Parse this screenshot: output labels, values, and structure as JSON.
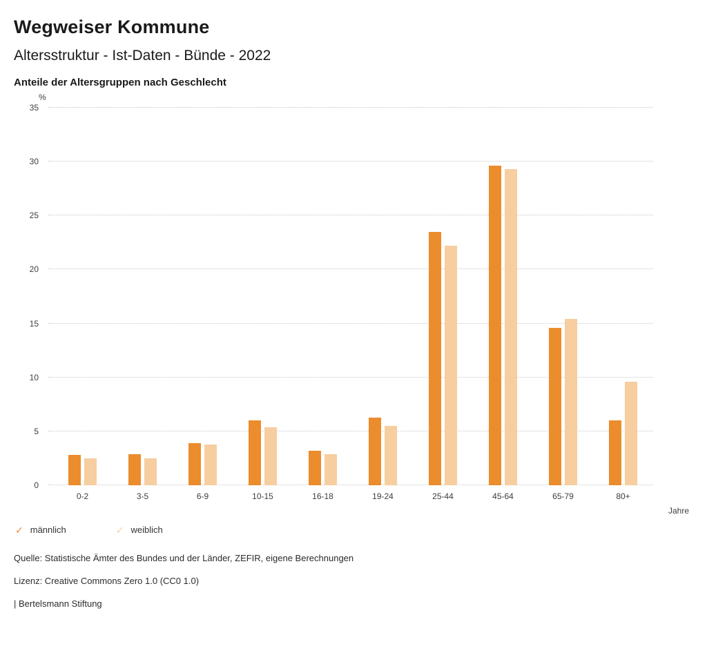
{
  "header": {
    "title": "Wegweiser Kommune",
    "subtitle": "Altersstruktur - Ist-Daten - Bünde - 2022",
    "chart_heading": "Anteile der Altersgruppen nach Geschlecht"
  },
  "chart_data": {
    "type": "bar",
    "title": "Anteile der Altersgruppen nach Geschlecht",
    "unit_label": "%",
    "xlabel": "Jahre",
    "ylabel": "%",
    "ylim": [
      0,
      35
    ],
    "yticks": [
      0,
      5,
      10,
      15,
      20,
      25,
      30,
      35
    ],
    "grid": true,
    "legend_position": "bottom",
    "categories": [
      "0-2",
      "3-5",
      "6-9",
      "10-15",
      "16-18",
      "19-24",
      "25-44",
      "45-64",
      "65-79",
      "80+"
    ],
    "series": [
      {
        "name": "männlich",
        "color": "#EB8C2D",
        "values": [
          2.8,
          2.9,
          3.9,
          6.0,
          3.2,
          6.3,
          23.5,
          29.6,
          14.6,
          6.0
        ]
      },
      {
        "name": "weiblich",
        "color": "#F6CEA0",
        "values": [
          2.5,
          2.5,
          3.8,
          5.4,
          2.9,
          5.5,
          22.2,
          29.3,
          15.4,
          9.6
        ]
      }
    ]
  },
  "legend": {
    "check_glyph": "✓"
  },
  "footer": {
    "source": "Quelle: Statistische Ämter des Bundes und der Länder, ZEFIR, eigene Berechnungen",
    "license": "Lizenz: Creative Commons Zero 1.0 (CC0 1.0)",
    "attribution": "| Bertelsmann Stiftung"
  }
}
